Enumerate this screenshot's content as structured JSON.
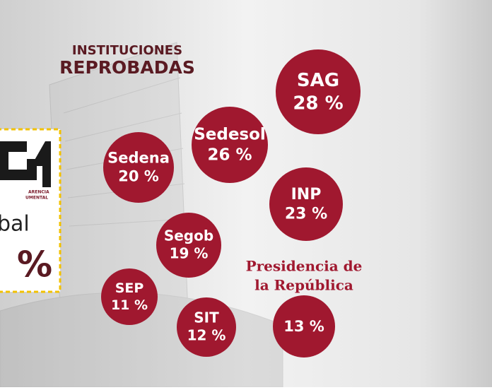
{
  "header": {
    "title_line1": "INSTITUCIONES",
    "title_line2": "REPROBADAS"
  },
  "institutions": [
    {
      "name": "SAG",
      "value": "28 %"
    },
    {
      "name": "Sedesol",
      "value": "26 %"
    },
    {
      "name": "Sedena",
      "value": "20 %"
    },
    {
      "name": "INP",
      "value": "23 %"
    },
    {
      "name": "Segob",
      "value": "19 %"
    },
    {
      "name": "SEP",
      "value": "11 %"
    },
    {
      "name": "SIT",
      "value": "12 %"
    }
  ],
  "presidencia": {
    "name_line1": "Presidencia de",
    "name_line2": "la República",
    "value": "13 %"
  },
  "side_panel": {
    "logo_text_1": "ARENCIA",
    "logo_text_2": "UMENTAL",
    "label": "bal",
    "value": "%"
  }
}
